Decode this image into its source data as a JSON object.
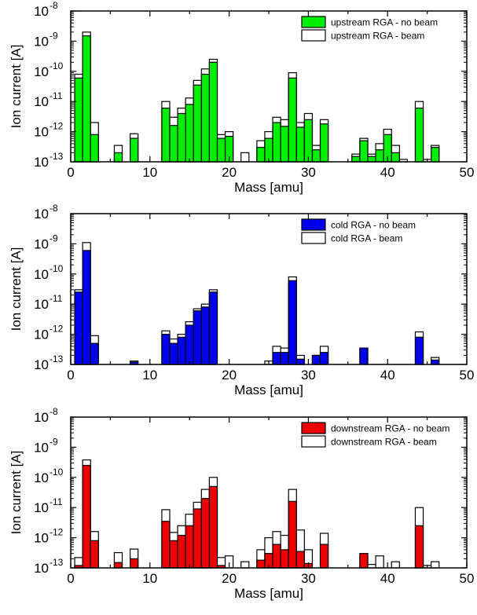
{
  "chart_data": [
    {
      "type": "bar",
      "yscale": "log",
      "xlabel": "Mass [amu]",
      "ylabel": "Ion current [A]",
      "xlim": [
        0,
        50
      ],
      "ylim": [
        1e-13,
        1e-08
      ],
      "xticks": [
        "0",
        "10",
        "20",
        "30",
        "40",
        "50"
      ],
      "yticks": [
        {
          "base": "10",
          "exp": "-13"
        },
        {
          "base": "10",
          "exp": "-12"
        },
        {
          "base": "10",
          "exp": "-11"
        },
        {
          "base": "10",
          "exp": "-10"
        },
        {
          "base": "10",
          "exp": "-9"
        },
        {
          "base": "10",
          "exp": "-8"
        }
      ],
      "legend_position": "top-right",
      "colors": {
        "no_beam": "#00ee00",
        "beam": "#ffffff"
      },
      "series": [
        {
          "name": "upstream RGA - no beam",
          "x": [
            1,
            2,
            3,
            6,
            8,
            12,
            13,
            14,
            15,
            16,
            17,
            18,
            19,
            20,
            24,
            25,
            26,
            27,
            28,
            29,
            30,
            31,
            32,
            36,
            37,
            38,
            39,
            40,
            41,
            44,
            46
          ],
          "values": [
            6e-11,
            1.5e-09,
            8e-13,
            2e-13,
            6e-13,
            6e-12,
            1.6e-12,
            4e-12,
            8e-12,
            3.5e-11,
            8e-11,
            2e-10,
            6e-13,
            7e-13,
            3e-13,
            6e-13,
            2e-12,
            1.5e-12,
            6e-11,
            1.4e-12,
            2.5e-12,
            2.5e-13,
            1.8e-12,
            1.5e-13,
            5e-13,
            1.5e-13,
            2.5e-13,
            8e-13,
            2e-13,
            6e-12,
            3e-13
          ]
        },
        {
          "name": "upstream RGA - beam",
          "x": [
            1,
            2,
            3,
            6,
            8,
            12,
            13,
            14,
            15,
            16,
            17,
            18,
            19,
            20,
            22,
            24,
            25,
            26,
            27,
            28,
            29,
            30,
            31,
            32,
            36,
            37,
            38,
            39,
            40,
            41,
            42,
            44,
            45,
            46
          ],
          "values": [
            8e-11,
            2e-09,
            2e-12,
            3.5e-13,
            8.5e-13,
            1e-11,
            3e-12,
            6e-12,
            1.3e-11,
            5e-11,
            1.2e-10,
            2.5e-10,
            8e-13,
            1e-12,
            2e-13,
            5e-13,
            1e-12,
            3e-12,
            2.5e-12,
            9e-11,
            2e-12,
            4e-12,
            3.5e-13,
            2.5e-12,
            1.8e-13,
            6e-13,
            1.8e-13,
            4e-13,
            1.2e-12,
            3.5e-13,
            1.2e-13,
            1e-11,
            1.2e-13,
            3.5e-13
          ]
        }
      ]
    },
    {
      "type": "bar",
      "yscale": "log",
      "xlabel": "Mass [amu]",
      "ylabel": "Ion current [A]",
      "xlim": [
        0,
        50
      ],
      "ylim": [
        1e-13,
        1e-08
      ],
      "xticks": [
        "0",
        "10",
        "20",
        "30",
        "40",
        "50"
      ],
      "yticks": [
        {
          "base": "10",
          "exp": "-13"
        },
        {
          "base": "10",
          "exp": "-12"
        },
        {
          "base": "10",
          "exp": "-11"
        },
        {
          "base": "10",
          "exp": "-10"
        },
        {
          "base": "10",
          "exp": "-9"
        },
        {
          "base": "10",
          "exp": "-8"
        }
      ],
      "legend_position": "top-right",
      "colors": {
        "no_beam": "#0000ee",
        "beam": "#ffffff"
      },
      "series": [
        {
          "name": "cold RGA - no beam",
          "x": [
            1,
            2,
            3,
            8,
            12,
            13,
            14,
            15,
            16,
            17,
            18,
            26,
            27,
            28,
            29,
            31,
            32,
            37,
            44,
            46
          ],
          "values": [
            2.5e-11,
            6e-10,
            5e-13,
            1.2e-13,
            1e-12,
            5e-13,
            8e-13,
            2e-12,
            6e-12,
            8e-12,
            2.5e-11,
            2.5e-13,
            2.5e-13,
            6e-11,
            1.5e-13,
            2e-13,
            2.5e-13,
            3.5e-13,
            8e-13,
            1.4e-13
          ]
        },
        {
          "name": "cold RGA - beam",
          "x": [
            1,
            2,
            3,
            8,
            12,
            13,
            14,
            15,
            16,
            17,
            18,
            25,
            26,
            27,
            28,
            29,
            31,
            32,
            37,
            44,
            46
          ],
          "values": [
            3e-11,
            1.1e-09,
            9e-13,
            1.3e-13,
            1.3e-12,
            7e-13,
            1e-12,
            2.6e-12,
            7e-12,
            1e-11,
            3e-11,
            1.3e-13,
            4e-13,
            3.5e-13,
            8e-11,
            2e-13,
            2e-13,
            4e-13,
            3.5e-13,
            1.2e-12,
            1.7e-13
          ]
        }
      ]
    },
    {
      "type": "bar",
      "yscale": "log",
      "xlabel": "Mass [amu]",
      "ylabel": "Ion current [A]",
      "xlim": [
        0,
        50
      ],
      "ylim": [
        1e-13,
        1e-08
      ],
      "xticks": [
        "0",
        "10",
        "20",
        "30",
        "40",
        "50"
      ],
      "yticks": [
        {
          "base": "10",
          "exp": "-13"
        },
        {
          "base": "10",
          "exp": "-12"
        },
        {
          "base": "10",
          "exp": "-11"
        },
        {
          "base": "10",
          "exp": "-10"
        },
        {
          "base": "10",
          "exp": "-9"
        },
        {
          "base": "10",
          "exp": "-8"
        }
      ],
      "legend_position": "top-right",
      "colors": {
        "no_beam": "#ee0000",
        "beam": "#ffffff"
      },
      "series": [
        {
          "name": "downstream RGA - no beam",
          "x": [
            1,
            2,
            3,
            6,
            8,
            12,
            13,
            14,
            15,
            16,
            17,
            18,
            19,
            24,
            25,
            26,
            27,
            28,
            29,
            30,
            32,
            37,
            44
          ],
          "values": [
            1.2e-13,
            2.5e-10,
            8e-13,
            1.5e-13,
            2e-13,
            3.5e-12,
            8e-13,
            1.2e-12,
            2.5e-12,
            9e-12,
            2e-11,
            5e-11,
            1.2e-13,
            1.8e-13,
            3e-13,
            6e-13,
            4e-13,
            1.6e-11,
            3.5e-13,
            1.4e-13,
            6e-13,
            3e-13,
            2.5e-12
          ]
        },
        {
          "name": "downstream RGA - beam",
          "x": [
            1,
            2,
            3,
            6,
            8,
            12,
            13,
            14,
            15,
            16,
            17,
            18,
            19,
            20,
            22,
            24,
            25,
            26,
            27,
            28,
            29,
            30,
            32,
            37,
            38,
            39,
            41,
            44,
            45,
            46
          ],
          "values": [
            2.2e-13,
            3.8e-10,
            1.6e-12,
            3.2e-13,
            4.2e-13,
            8.5e-12,
            1.5e-12,
            2.5e-12,
            6e-12,
            1.5e-11,
            4e-11,
            1e-10,
            2.2e-13,
            2.5e-13,
            1.6e-13,
            4e-13,
            1e-12,
            1.6e-12,
            1.2e-12,
            4e-11,
            1.8e-12,
            4e-13,
            1.4e-12,
            2.5e-13,
            1.3e-13,
            2.5e-13,
            1.6e-13,
            1e-11,
            1.2e-13,
            1.6e-13
          ]
        }
      ]
    }
  ]
}
